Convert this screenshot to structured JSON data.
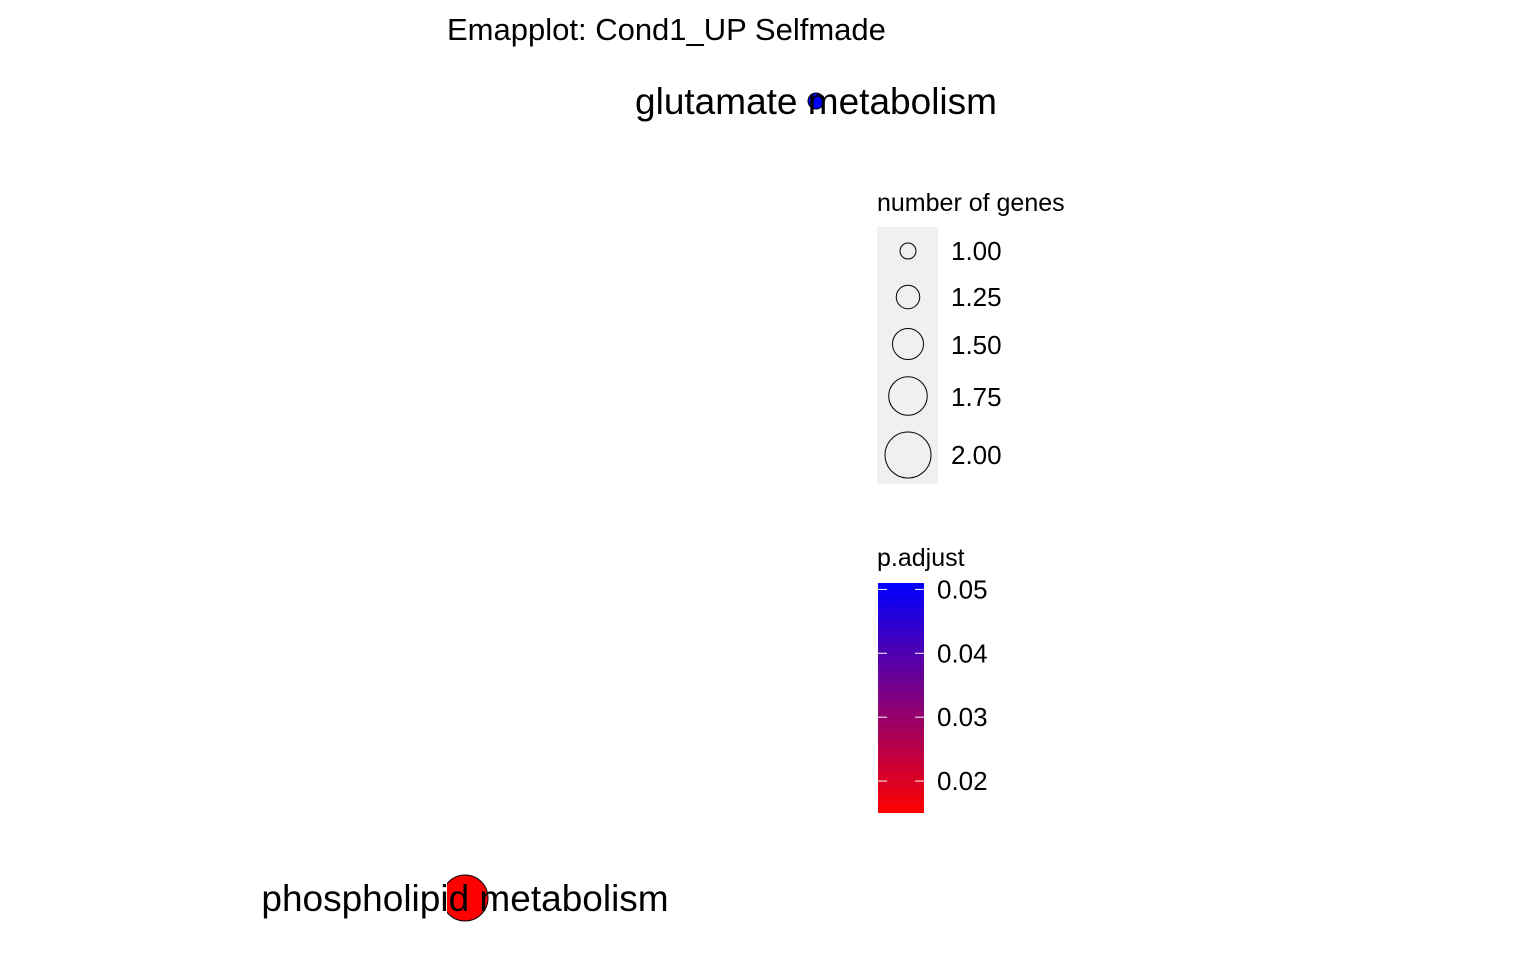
{
  "chart_data": {
    "type": "scatter",
    "title": "Emapplot: Cond1_UP Selfmade",
    "nodes": [
      {
        "name": "glutamate metabolism",
        "x": 1,
        "y": 1,
        "size": 1,
        "p_adjust": 0.051,
        "color": "#0000FF"
      },
      {
        "name": "phospholipid metabolism",
        "x": 0,
        "y": 0,
        "size": 2,
        "p_adjust": 0.015,
        "color": "#FF0000"
      }
    ],
    "size_legend": {
      "title": "number of genes",
      "values": [
        1.0,
        1.25,
        1.5,
        1.75,
        2.0
      ],
      "labels": [
        "1.00",
        "1.25",
        "1.50",
        "1.75",
        "2.00"
      ]
    },
    "color_legend": {
      "title": "p.adjust",
      "low_color": "#FF0000",
      "high_color": "#0000FF",
      "range": [
        0.015,
        0.051
      ],
      "ticks": [
        0.02,
        0.03,
        0.04,
        0.05
      ],
      "tick_labels": [
        "0.02",
        "0.03",
        "0.04",
        "0.05"
      ]
    },
    "grid": false,
    "legend_position": "right"
  }
}
